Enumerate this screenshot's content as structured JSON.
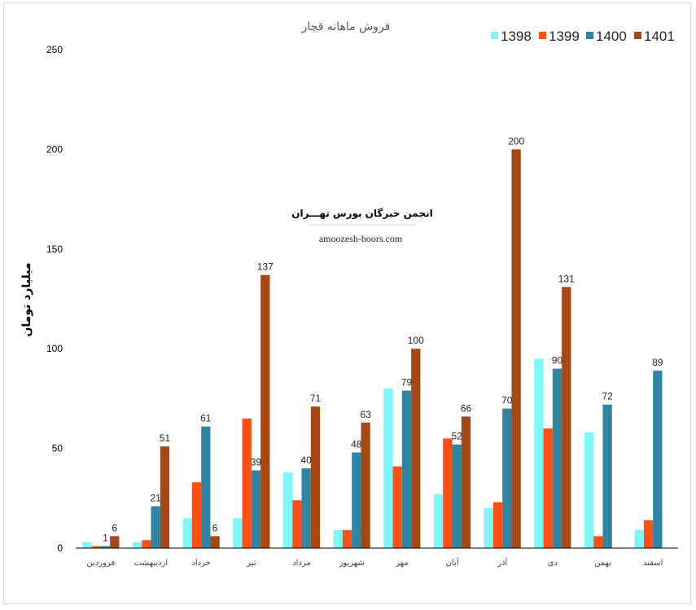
{
  "chart_data": {
    "type": "bar",
    "title": "فروش ماهانه قچار",
    "ylabel": "میلیارد تومان",
    "ylim": [
      0,
      250
    ],
    "yticks": [
      0,
      50,
      100,
      150,
      200,
      250
    ],
    "grid": false,
    "legend_position": "top-right",
    "categories": [
      "فروردین",
      "اردیبهشت",
      "خرداد",
      "تیر",
      "مرداد",
      "شهریور",
      "مهر",
      "آبان",
      "آذر",
      "دی",
      "بهمن",
      "اسفند"
    ],
    "series": [
      {
        "name": "1398",
        "color": "#7ff6fa",
        "values": [
          3,
          3,
          15,
          15,
          38,
          9,
          80,
          27,
          20,
          95,
          58,
          9
        ],
        "labels": [
          null,
          null,
          null,
          null,
          null,
          null,
          null,
          null,
          null,
          null,
          null,
          null
        ]
      },
      {
        "name": "1399",
        "color": "#ff4f14",
        "values": [
          1,
          4,
          33,
          65,
          24,
          9,
          41,
          55,
          23,
          60,
          6,
          14
        ],
        "labels": [
          null,
          null,
          null,
          null,
          null,
          null,
          null,
          null,
          null,
          null,
          null,
          null
        ]
      },
      {
        "name": "1400",
        "color": "#2e86a3",
        "values": [
          1,
          21,
          61,
          39,
          40,
          48,
          79,
          52,
          70,
          90,
          72,
          89
        ],
        "labels": [
          1,
          21,
          61,
          39,
          40,
          48,
          79,
          52,
          70,
          90,
          72,
          89
        ]
      },
      {
        "name": "1401",
        "color": "#a64915",
        "values": [
          6,
          51,
          6,
          137,
          71,
          63,
          100,
          66,
          200,
          131,
          null,
          null
        ],
        "labels": [
          6,
          51,
          6,
          137,
          71,
          63,
          100,
          66,
          200,
          131,
          null,
          null
        ]
      }
    ]
  },
  "watermark": {
    "name": "انجمن خبرگان بورس تهـــران",
    "url": "amoozesh-boors.com"
  }
}
